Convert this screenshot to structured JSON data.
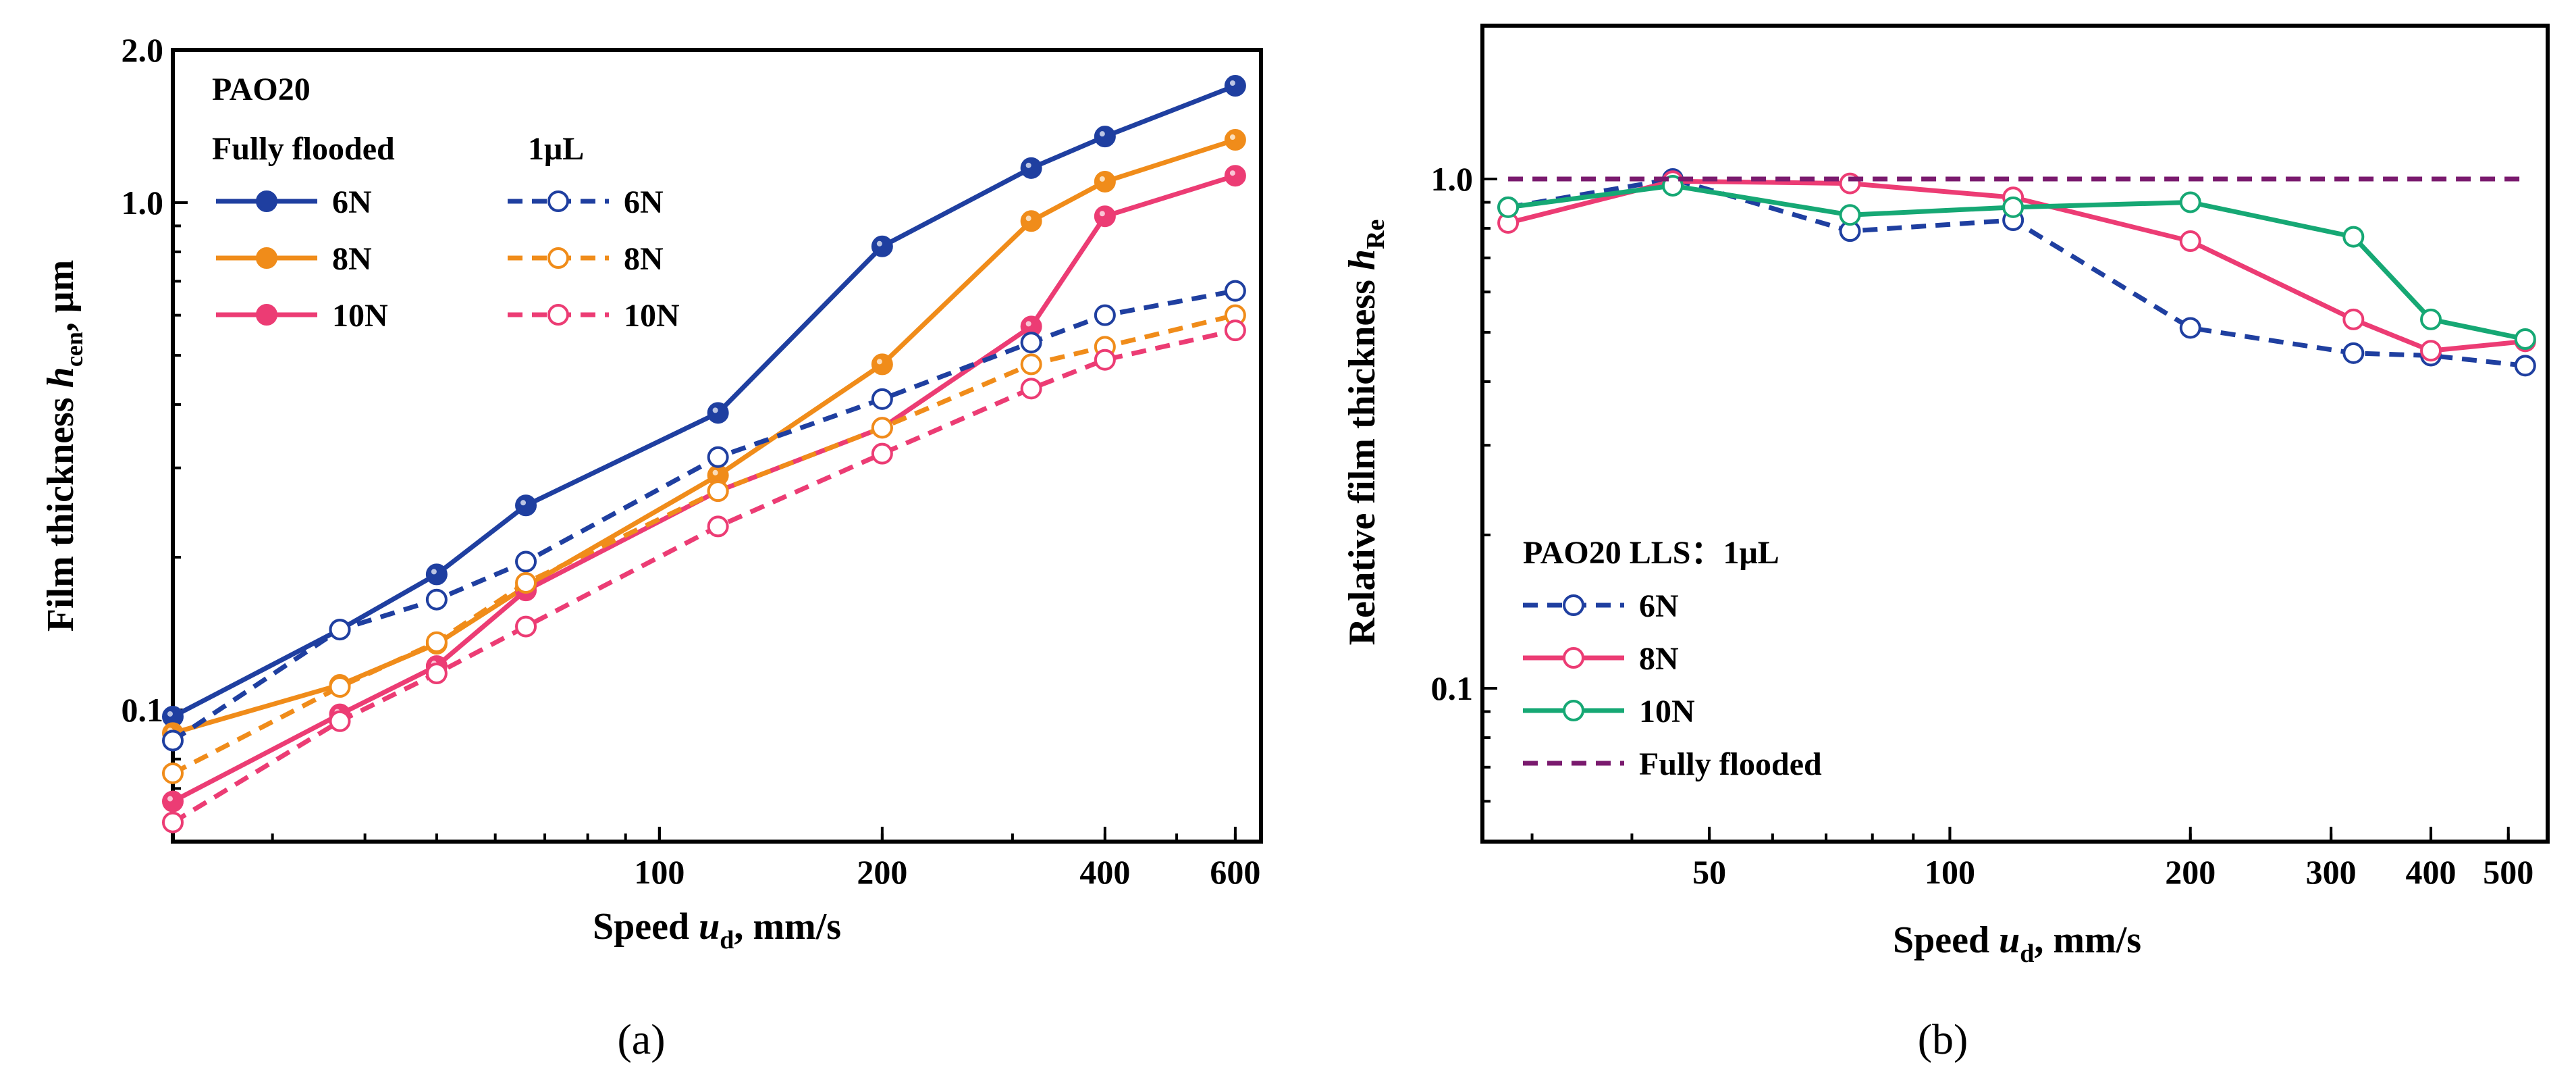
{
  "panels": [
    {
      "id": "a",
      "caption": "(a)",
      "ylabel": [
        "Film thickness ",
        "h",
        "cen",
        ", μm"
      ],
      "xlabel": [
        "Speed ",
        "u",
        "d",
        ", mm/s"
      ],
      "legend_title": "PAO20",
      "legend_col1": "Fully flooded",
      "legend_col2": "1μL"
    },
    {
      "id": "b",
      "caption": "(b)",
      "ylabel": [
        "Relative film thickness ",
        "h",
        "Re"
      ],
      "xlabel": [
        "Speed ",
        "u",
        "d",
        ", mm/s"
      ],
      "legend_title": "PAO20    LLS：1μL"
    }
  ],
  "chart_data": [
    {
      "type": "line",
      "panel": "a",
      "xscale": "log",
      "yscale": "log",
      "xlim": [
        22,
        650
      ],
      "ylim": [
        0.055,
        2.0
      ],
      "xticks": [
        100,
        200,
        400,
        600
      ],
      "yticks": [
        0.1,
        1.0,
        2.0
      ],
      "ytick_labels": [
        "0.1",
        "1.0",
        "2.0"
      ],
      "x": [
        22,
        37,
        50,
        66,
        120,
        200,
        318,
        400,
        600
      ],
      "series": [
        {
          "name": "6N",
          "group": "Fully flooded",
          "style": "solid",
          "marker": "filled",
          "color": "#1f3fa0",
          "values": [
            0.097,
            0.144,
            0.185,
            0.253,
            0.385,
            0.82,
            1.17,
            1.35,
            1.7
          ]
        },
        {
          "name": "8N",
          "group": "Fully flooded",
          "style": "solid",
          "marker": "filled",
          "color": "#f08c1a",
          "values": [
            0.09,
            0.112,
            0.135,
            0.175,
            0.29,
            0.48,
            0.92,
            1.1,
            1.33
          ]
        },
        {
          "name": "10N",
          "group": "Fully flooded",
          "style": "solid",
          "marker": "filled",
          "color": "#ec3c74",
          "values": [
            0.066,
            0.098,
            0.122,
            0.172,
            0.27,
            0.36,
            0.57,
            0.94,
            1.13
          ]
        },
        {
          "name": "6N",
          "group": "1μL",
          "style": "dashed",
          "marker": "open",
          "color": "#1f3fa0",
          "values": [
            0.087,
            0.144,
            0.165,
            0.196,
            0.315,
            0.41,
            0.53,
            0.6,
            0.67
          ]
        },
        {
          "name": "8N",
          "group": "1μL",
          "style": "dashed",
          "marker": "open",
          "color": "#f08c1a",
          "values": [
            0.075,
            0.111,
            0.136,
            0.178,
            0.27,
            0.36,
            0.48,
            0.52,
            0.6
          ]
        },
        {
          "name": "10N",
          "group": "1μL",
          "style": "dashed",
          "marker": "open",
          "color": "#ec3c74",
          "values": [
            0.06,
            0.095,
            0.118,
            0.146,
            0.23,
            0.32,
            0.43,
            0.49,
            0.56
          ]
        }
      ]
    },
    {
      "type": "line",
      "panel": "b",
      "xscale": "log",
      "yscale": "log",
      "xlim": [
        26,
        560
      ],
      "ylim": [
        0.05,
        2.0
      ],
      "xticks": [
        50,
        100,
        200,
        300,
        400,
        500
      ],
      "yticks": [
        0.1,
        1.0
      ],
      "ytick_labels": [
        "0.1",
        "1.0"
      ],
      "x": [
        28,
        45,
        75,
        120,
        200,
        320,
        400,
        525
      ],
      "series": [
        {
          "name": "6N",
          "style": "dashed",
          "marker": "open",
          "color": "#1f3fa0",
          "values": [
            0.88,
            1.0,
            0.79,
            0.83,
            0.51,
            0.455,
            0.45,
            0.43
          ]
        },
        {
          "name": "8N",
          "style": "solid",
          "marker": "open",
          "color": "#ec3c74",
          "values": [
            0.82,
            0.99,
            0.98,
            0.92,
            0.755,
            0.53,
            0.46,
            0.48
          ]
        },
        {
          "name": "10N",
          "style": "solid",
          "marker": "open",
          "color": "#16a874",
          "values": [
            0.88,
            0.97,
            0.85,
            0.88,
            0.9,
            0.77,
            0.53,
            0.485
          ]
        },
        {
          "name": "Fully flooded",
          "style": "dashed",
          "marker": "none",
          "color": "#7a1a6e",
          "values": [
            1.0,
            1.0,
            1.0,
            1.0,
            1.0,
            1.0,
            1.0,
            1.0
          ]
        }
      ]
    }
  ]
}
